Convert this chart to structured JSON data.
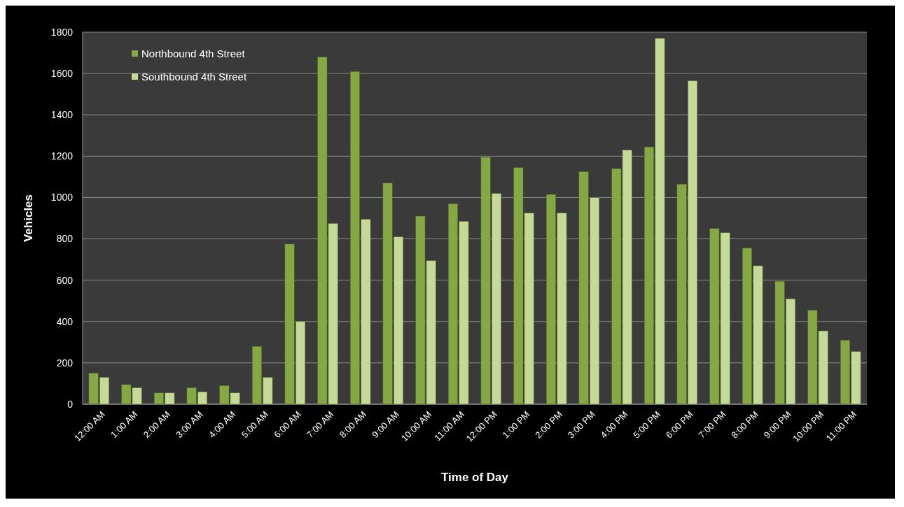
{
  "chart_data": {
    "type": "bar",
    "xlabel": "Time of Day",
    "ylabel": "Vehicles",
    "categories": [
      "12:00 AM",
      "1:00 AM",
      "2:00 AM",
      "3:00 AM",
      "4:00 AM",
      "5:00 AM",
      "6:00 AM",
      "7:00 AM",
      "8:00 AM",
      "9:00 AM",
      "10:00 AM",
      "11:00 AM",
      "12:00 PM",
      "1:00 PM",
      "2:00 PM",
      "3:00 PM",
      "4:00 PM",
      "5:00 PM",
      "6:00 PM",
      "7:00 PM",
      "8:00 PM",
      "9:00 PM",
      "10:00 PM",
      "11:00 PM"
    ],
    "series": [
      {
        "name": "Northbound 4th Street",
        "color": "#86a844",
        "values": [
          150,
          95,
          55,
          80,
          90,
          280,
          775,
          1680,
          1610,
          1070,
          910,
          970,
          1195,
          1145,
          1015,
          1125,
          1140,
          1245,
          1065,
          850,
          755,
          595,
          455,
          310
        ]
      },
      {
        "name": "Southbound 4th Street",
        "color": "#c6da98",
        "values": [
          130,
          80,
          55,
          60,
          55,
          130,
          400,
          875,
          895,
          810,
          695,
          885,
          1020,
          925,
          925,
          1000,
          1230,
          1770,
          1565,
          830,
          670,
          510,
          355,
          255
        ]
      }
    ],
    "ylim": [
      0,
      1800
    ],
    "yticks": [
      0,
      200,
      400,
      600,
      800,
      1000,
      1200,
      1400,
      1600,
      1800
    ],
    "grid": "y",
    "legend": "top left"
  }
}
